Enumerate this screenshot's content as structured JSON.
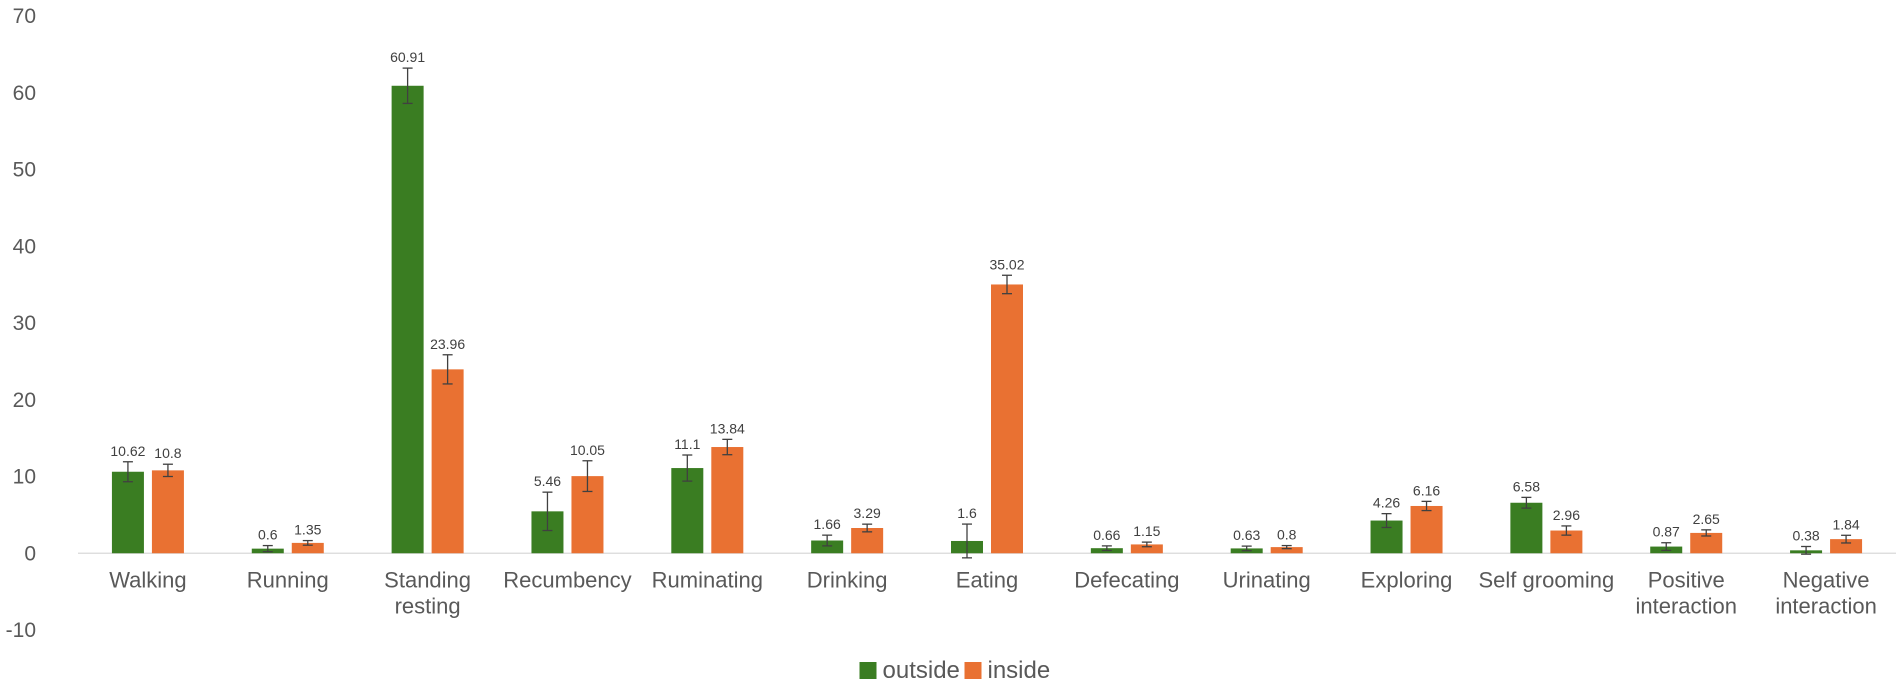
{
  "chart_data": {
    "type": "bar",
    "title": "",
    "xlabel": "",
    "ylabel": "",
    "ylim": [
      -10,
      70
    ],
    "yticks": [
      -10,
      0,
      10,
      20,
      30,
      40,
      50,
      60,
      70
    ],
    "grid": false,
    "legend_position": "bottom",
    "categories": [
      [
        "Walking"
      ],
      [
        "Running"
      ],
      [
        "Standing",
        "resting"
      ],
      [
        "Recumbency"
      ],
      [
        "Ruminating"
      ],
      [
        "Drinking"
      ],
      [
        "Eating"
      ],
      [
        "Defecating"
      ],
      [
        "Urinating"
      ],
      [
        "Exploring"
      ],
      [
        "Self grooming"
      ],
      [
        "Positive",
        "interaction"
      ],
      [
        "Negative",
        "interaction"
      ]
    ],
    "series": [
      {
        "name": "outside",
        "color": "#3a7d22",
        "values": [
          10.62,
          0.6,
          60.91,
          5.46,
          11.1,
          1.66,
          1.6,
          0.66,
          0.63,
          4.26,
          6.58,
          0.87,
          0.38
        ],
        "labels": [
          "10.62",
          "0.6",
          "60.91",
          "5.46",
          "11.1",
          "1.66",
          "1.6",
          "0.66",
          "0.63",
          "4.26",
          "6.58",
          "0.87",
          "0.38"
        ],
        "errors": [
          1.3,
          0.4,
          2.3,
          2.5,
          1.7,
          0.7,
          2.2,
          0.3,
          0.3,
          0.9,
          0.7,
          0.5,
          0.5
        ]
      },
      {
        "name": "inside",
        "color": "#e97132",
        "values": [
          10.8,
          1.35,
          23.96,
          10.05,
          13.84,
          3.29,
          35.02,
          1.15,
          0.8,
          6.16,
          2.96,
          2.65,
          1.84
        ],
        "labels": [
          "10.8",
          "1.35",
          "23.96",
          "10.05",
          "13.84",
          "3.29",
          "35.02",
          "1.15",
          "0.8",
          "6.16",
          "2.96",
          "2.65",
          "1.84"
        ],
        "errors": [
          0.8,
          0.3,
          1.9,
          2.0,
          1.0,
          0.5,
          1.2,
          0.3,
          0.2,
          0.6,
          0.6,
          0.4,
          0.5
        ]
      }
    ]
  }
}
